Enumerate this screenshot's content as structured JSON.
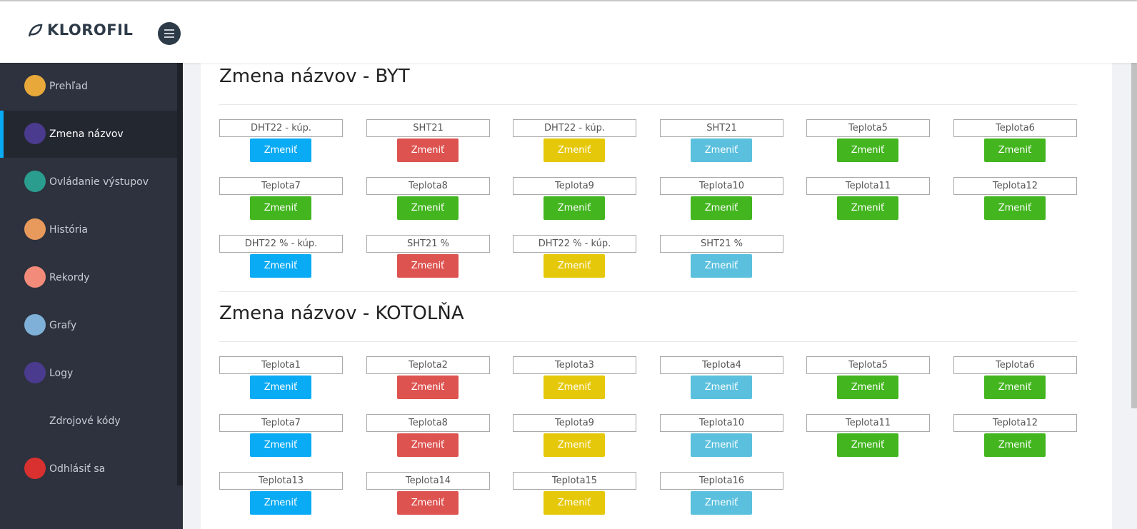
{
  "header": {
    "logo": "KLOROFIL"
  },
  "sidebar": {
    "items": [
      {
        "label": "Prehľad"
      },
      {
        "label": "Zmena názvov",
        "active": true
      },
      {
        "label": "Ovládanie výstupov"
      },
      {
        "label": "História"
      },
      {
        "label": "Rekordy"
      },
      {
        "label": "Grafy"
      },
      {
        "label": "Logy"
      },
      {
        "label": "Zdrojové kódy"
      },
      {
        "label": "Odhlásiť sa"
      }
    ]
  },
  "sections": [
    {
      "title": "Zmena názvov - BYT",
      "button_label": "Zmeniť",
      "fields": [
        {
          "label": "DHT22 - kúp.",
          "color": "#0aabf5"
        },
        {
          "label": "SHT21",
          "color": "#dd5350"
        },
        {
          "label": "DHT22 - kúp.",
          "color": "#e6c80a"
        },
        {
          "label": "SHT21",
          "color": "#5bc0de"
        },
        {
          "label": "Teplota5",
          "color": "#43b51f"
        },
        {
          "label": "Teplota6",
          "color": "#43b51f"
        },
        {
          "label": "Teplota7",
          "color": "#43b51f"
        },
        {
          "label": "Teplota8",
          "color": "#43b51f"
        },
        {
          "label": "Teplota9",
          "color": "#43b51f"
        },
        {
          "label": "Teplota10",
          "color": "#43b51f"
        },
        {
          "label": "Teplota11",
          "color": "#43b51f"
        },
        {
          "label": "Teplota12",
          "color": "#43b51f"
        },
        {
          "label": "DHT22 % - kúp.",
          "color": "#0aabf5"
        },
        {
          "label": "SHT21 %",
          "color": "#dd5350"
        },
        {
          "label": "DHT22 % - kúp.",
          "color": "#e6c80a"
        },
        {
          "label": "SHT21 %",
          "color": "#5bc0de"
        }
      ]
    },
    {
      "title": "Zmena názvov - KOTOLŇA",
      "button_label": "Zmeniť",
      "fields": [
        {
          "label": "Teplota1",
          "color": "#0aabf5"
        },
        {
          "label": "Teplota2",
          "color": "#dd5350"
        },
        {
          "label": "Teplota3",
          "color": "#e6c80a"
        },
        {
          "label": "Teplota4",
          "color": "#5bc0de"
        },
        {
          "label": "Teplota5",
          "color": "#43b51f"
        },
        {
          "label": "Teplota6",
          "color": "#43b51f"
        },
        {
          "label": "Teplota7",
          "color": "#0aabf5"
        },
        {
          "label": "Teplota8",
          "color": "#dd5350"
        },
        {
          "label": "Teplota9",
          "color": "#e6c80a"
        },
        {
          "label": "Teplota10",
          "color": "#5bc0de"
        },
        {
          "label": "Teplota11",
          "color": "#43b51f"
        },
        {
          "label": "Teplota12",
          "color": "#43b51f"
        },
        {
          "label": "Teplota13",
          "color": "#0aabf5"
        },
        {
          "label": "Teplota14",
          "color": "#dd5350"
        },
        {
          "label": "Teplota15",
          "color": "#e6c80a"
        },
        {
          "label": "Teplota16",
          "color": "#5bc0de"
        }
      ]
    }
  ]
}
